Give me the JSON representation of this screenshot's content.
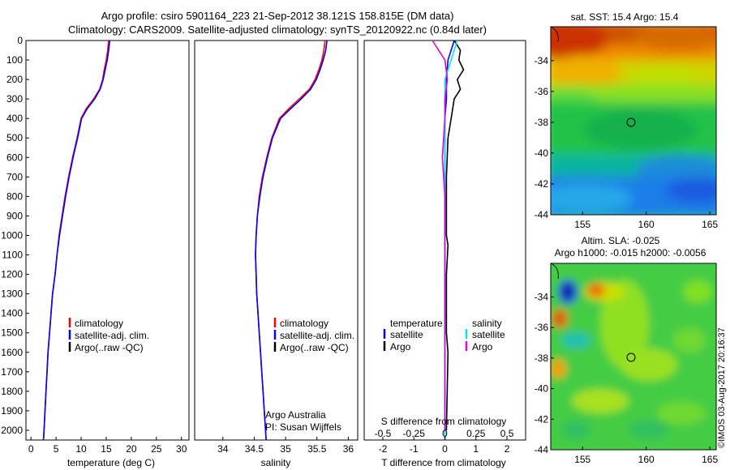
{
  "header": {
    "line1": "Argo profile: csiro 5901164_223 21-Sep-2012 38.121S 158.815E (DM data)",
    "line2": "Climatology: CARS2009. Satellite-adjusted climatology: synTS_20120922.nc (0.84d later)"
  },
  "credit": "©IMOS 03-Aug-2017 20:16:37",
  "colors": {
    "climatology": "#ff0000",
    "satellite": "#0000ff",
    "argo": "#000000",
    "sat_salinity": "#00e5e5",
    "argo_salinity": "#e000e0",
    "map_marker": "#000000"
  },
  "chart_data": [
    {
      "id": "temperature",
      "type": "line",
      "xlabel": "temperature (deg C)",
      "xlim": [
        -1,
        31.5
      ],
      "ylim": [
        2050,
        0
      ],
      "xticks": [
        0,
        5,
        10,
        15,
        20,
        25,
        30
      ],
      "yticks": [
        0,
        100,
        200,
        300,
        400,
        500,
        600,
        700,
        800,
        900,
        1000,
        1100,
        1200,
        1300,
        1400,
        1500,
        1600,
        1700,
        1800,
        1900,
        2000
      ],
      "legend": [
        "climatology",
        "satellite-adj. clim.",
        "Argo(..raw -QC)"
      ],
      "series": [
        {
          "name": "climatology",
          "color": "#ff0000",
          "points": [
            [
              15.5,
              0
            ],
            [
              15.3,
              50
            ],
            [
              15.0,
              100
            ],
            [
              14.6,
              150
            ],
            [
              14.3,
              200
            ],
            [
              13.7,
              250
            ],
            [
              12.5,
              300
            ],
            [
              11.0,
              350
            ],
            [
              10.0,
              400
            ],
            [
              9.2,
              500
            ],
            [
              8.3,
              600
            ],
            [
              7.5,
              700
            ],
            [
              6.8,
              800
            ],
            [
              6.2,
              900
            ],
            [
              5.6,
              1000
            ],
            [
              5.2,
              1100
            ],
            [
              4.8,
              1200
            ],
            [
              4.3,
              1300
            ],
            [
              4.0,
              1400
            ],
            [
              3.7,
              1500
            ],
            [
              3.4,
              1600
            ],
            [
              3.2,
              1700
            ],
            [
              3.0,
              1800
            ],
            [
              2.8,
              1900
            ],
            [
              2.6,
              2000
            ],
            [
              2.5,
              2050
            ]
          ]
        },
        {
          "name": "satellite-adj. clim.",
          "color": "#0000ff",
          "points": [
            [
              15.7,
              0
            ],
            [
              15.5,
              50
            ],
            [
              15.2,
              100
            ],
            [
              14.8,
              150
            ],
            [
              14.4,
              200
            ],
            [
              13.8,
              250
            ],
            [
              12.7,
              300
            ],
            [
              11.2,
              350
            ],
            [
              10.1,
              400
            ],
            [
              9.3,
              500
            ],
            [
              8.4,
              600
            ],
            [
              7.6,
              700
            ],
            [
              6.9,
              800
            ],
            [
              6.3,
              900
            ],
            [
              5.7,
              1000
            ],
            [
              5.2,
              1100
            ],
            [
              4.8,
              1200
            ],
            [
              4.3,
              1300
            ],
            [
              4.0,
              1400
            ],
            [
              3.7,
              1500
            ],
            [
              3.4,
              1600
            ],
            [
              3.2,
              1700
            ],
            [
              3.0,
              1800
            ],
            [
              2.8,
              1900
            ],
            [
              2.6,
              2000
            ],
            [
              2.5,
              2050
            ]
          ]
        }
      ]
    },
    {
      "id": "salinity",
      "type": "line",
      "xlabel": "salinity",
      "xlim": [
        33.55,
        36.15
      ],
      "ylim": [
        2050,
        0
      ],
      "xticks": [
        34,
        34.5,
        35,
        35.5,
        36
      ],
      "legend": [
        "climatology",
        "satellite-adj. clim.",
        "Argo(..raw -QC)"
      ],
      "annotation": [
        "Argo Australia",
        "PI: Susan Wijffels"
      ],
      "series": [
        {
          "name": "climatology",
          "color": "#ff0000",
          "points": [
            [
              35.63,
              0
            ],
            [
              35.61,
              50
            ],
            [
              35.58,
              100
            ],
            [
              35.53,
              150
            ],
            [
              35.47,
              200
            ],
            [
              35.38,
              250
            ],
            [
              35.22,
              300
            ],
            [
              35.05,
              350
            ],
            [
              34.9,
              400
            ],
            [
              34.78,
              500
            ],
            [
              34.7,
              600
            ],
            [
              34.63,
              700
            ],
            [
              34.58,
              800
            ],
            [
              34.55,
              900
            ],
            [
              34.53,
              1000
            ],
            [
              34.52,
              1100
            ],
            [
              34.53,
              1200
            ],
            [
              34.54,
              1300
            ],
            [
              34.56,
              1400
            ],
            [
              34.58,
              1500
            ],
            [
              34.6,
              1600
            ],
            [
              34.62,
              1700
            ],
            [
              34.64,
              1800
            ],
            [
              34.66,
              1900
            ],
            [
              34.68,
              2000
            ],
            [
              34.69,
              2050
            ]
          ]
        },
        {
          "name": "satellite-adj. clim.",
          "color": "#0000ff",
          "points": [
            [
              35.66,
              0
            ],
            [
              35.64,
              50
            ],
            [
              35.6,
              100
            ],
            [
              35.55,
              150
            ],
            [
              35.49,
              200
            ],
            [
              35.4,
              250
            ],
            [
              35.25,
              300
            ],
            [
              35.08,
              350
            ],
            [
              34.92,
              400
            ],
            [
              34.79,
              500
            ],
            [
              34.71,
              600
            ],
            [
              34.64,
              700
            ],
            [
              34.59,
              800
            ],
            [
              34.55,
              900
            ],
            [
              34.53,
              1000
            ],
            [
              34.52,
              1100
            ],
            [
              34.53,
              1200
            ],
            [
              34.54,
              1300
            ],
            [
              34.56,
              1400
            ],
            [
              34.58,
              1500
            ],
            [
              34.6,
              1600
            ],
            [
              34.62,
              1700
            ],
            [
              34.64,
              1800
            ],
            [
              34.66,
              1900
            ],
            [
              34.68,
              2000
            ],
            [
              34.69,
              2050
            ]
          ]
        }
      ]
    },
    {
      "id": "difference",
      "type": "line",
      "xlabel": "T difference from climatology",
      "xlabel_top": "S difference from climatology",
      "t_xlim": [
        -2.6,
        2.6
      ],
      "t_xticks": [
        -2,
        -1,
        0,
        1,
        2
      ],
      "s_xticks": [
        -0.5,
        -0.25,
        0,
        0.25,
        0.5
      ],
      "s_xtick_labels": [
        "-0.5",
        "-0.25",
        "0",
        "0.25",
        "0.5"
      ],
      "legend_headers": [
        "temperature",
        "salinity"
      ],
      "legend": [
        "satellite",
        "Argo",
        "satellite",
        "Argo"
      ],
      "series": [
        {
          "name": "satellite",
          "group": "temperature",
          "color": "#0000ff",
          "points": [
            [
              0.3,
              0
            ],
            [
              0.2,
              50
            ],
            [
              0.1,
              100
            ],
            [
              0.05,
              200
            ],
            [
              0.05,
              300
            ],
            [
              0.0,
              400
            ],
            [
              0.0,
              1000
            ],
            [
              0.0,
              2050
            ]
          ]
        },
        {
          "name": "Argo",
          "group": "temperature",
          "color": "#000000",
          "points": [
            [
              0.3,
              0
            ],
            [
              0.5,
              50
            ],
            [
              0.45,
              100
            ],
            [
              0.6,
              150
            ],
            [
              0.4,
              200
            ],
            [
              0.5,
              250
            ],
            [
              0.3,
              300
            ],
            [
              0.2,
              400
            ],
            [
              0.1,
              500
            ],
            [
              0.05,
              700
            ],
            [
              0.05,
              1000
            ],
            [
              0.1,
              1050
            ],
            [
              0.05,
              1200
            ],
            [
              0.05,
              1500
            ],
            [
              0.1,
              1600
            ],
            [
              0.05,
              2000
            ]
          ]
        },
        {
          "name": "satellite",
          "group": "salinity",
          "color": "#00e5e5",
          "points": [
            [
              0.1,
              0
            ],
            [
              0.05,
              100
            ],
            [
              0.0,
              200
            ],
            [
              0.0,
              2050
            ]
          ]
        },
        {
          "name": "Argo",
          "group": "salinity",
          "color": "#e000e0",
          "points": [
            [
              -0.1,
              0
            ],
            [
              -0.05,
              50
            ],
            [
              0.0,
              100
            ],
            [
              0.02,
              200
            ],
            [
              0.0,
              300
            ],
            [
              0.0,
              400
            ],
            [
              -0.02,
              600
            ],
            [
              0.0,
              800
            ],
            [
              0.0,
              2000
            ]
          ]
        }
      ]
    },
    {
      "id": "sst_map",
      "type": "heatmap",
      "title": "sat. SST: 15.4 Argo: 15.4",
      "xlim": [
        152.5,
        165.5
      ],
      "ylim": [
        -44,
        -31.8
      ],
      "xticks": [
        155,
        160,
        165
      ],
      "yticks": [
        -34,
        -36,
        -38,
        -40,
        -42,
        -44
      ],
      "marker": [
        158.815,
        -38.121
      ]
    },
    {
      "id": "sla_map",
      "type": "heatmap",
      "title_lines": [
        "Altim. SLA: -0.025",
        "Argo h1000: -0.015 h2000: -0.0056"
      ],
      "xlim": [
        152.5,
        165.5
      ],
      "ylim": [
        -44,
        -31.8
      ],
      "xticks": [
        155,
        160,
        165
      ],
      "yticks": [
        -34,
        -36,
        -38,
        -40,
        -42,
        -44
      ],
      "marker": [
        158.815,
        -38.121
      ]
    }
  ]
}
